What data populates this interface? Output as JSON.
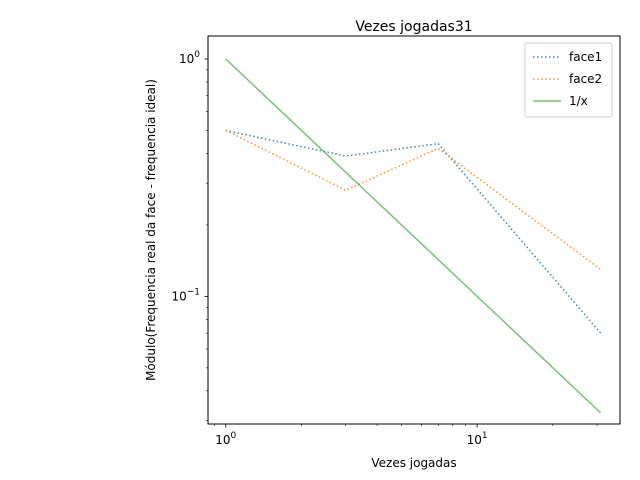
{
  "chart_data": {
    "type": "line",
    "title": "Vezes jogadas31",
    "xlabel": "Vezes jogadas",
    "ylabel": "Módulo(Frequencia real da face - frequencia ideal)",
    "xscale": "log",
    "yscale": "log",
    "xlim": [
      0.85,
      37
    ],
    "ylim": [
      0.029,
      1.25
    ],
    "x_ticks": [
      {
        "value": 1,
        "base": "10",
        "exp": "0"
      },
      {
        "value": 10,
        "base": "10",
        "exp": "1"
      }
    ],
    "y_ticks": [
      {
        "value": 0.1,
        "base": "10",
        "exp": "−1"
      },
      {
        "value": 1,
        "base": "10",
        "exp": "0"
      }
    ],
    "legend_position": "top-right",
    "grid": false,
    "series": [
      {
        "name": "face1",
        "style": "dotted",
        "color": "#1f77b4",
        "x": [
          1,
          3,
          7,
          31
        ],
        "y": [
          0.5,
          0.39,
          0.44,
          0.07
        ]
      },
      {
        "name": "face2",
        "style": "dotted",
        "color": "#ff7f0e",
        "x": [
          1,
          3,
          7,
          31
        ],
        "y": [
          0.5,
          0.28,
          0.42,
          0.13
        ]
      },
      {
        "name": "1/x",
        "style": "solid",
        "color": "#2ca02c",
        "x": [
          1,
          31
        ],
        "y": [
          1,
          0.0323
        ]
      }
    ]
  }
}
